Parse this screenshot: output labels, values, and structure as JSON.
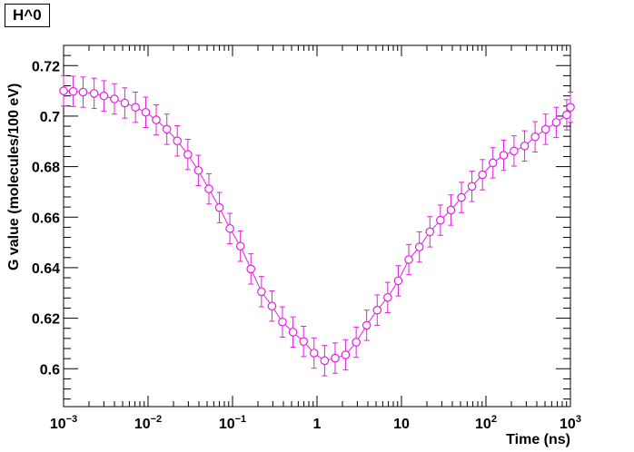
{
  "chart_data": {
    "type": "line",
    "title": "H^0",
    "xlabel": "Time (ns)",
    "ylabel": "G value (molecules/100 eV)",
    "xscale": "log",
    "xlim": [
      0.001,
      1000
    ],
    "ylim": [
      0.585,
      0.728
    ],
    "grid": false,
    "legend": "none",
    "x_tick_labels": [
      {
        "base": "10",
        "exp": "−3",
        "value": 0.001
      },
      {
        "base": "10",
        "exp": "−2",
        "value": 0.01
      },
      {
        "base": "10",
        "exp": "−1",
        "value": 0.1
      },
      {
        "base": "1",
        "exp": "",
        "value": 1
      },
      {
        "base": "10",
        "exp": "",
        "value": 10
      },
      {
        "base": "10",
        "exp": "2",
        "value": 100
      },
      {
        "base": "10",
        "exp": "3",
        "value": 1000
      }
    ],
    "y_ticks": [
      0.6,
      0.62,
      0.64,
      0.66,
      0.68,
      0.7,
      0.72
    ],
    "y_tick_labels": [
      "0.6",
      "0.62",
      "0.64",
      "0.66",
      "0.68",
      "0.7",
      "0.72"
    ],
    "colors": {
      "series": "#e020e0",
      "axes": "#000000"
    },
    "series": [
      {
        "x": [
          0.001,
          0.0013,
          0.0017,
          0.0023,
          0.003,
          0.004,
          0.0053,
          0.0071,
          0.0094,
          0.0125,
          0.0167,
          0.0222,
          0.0296,
          0.0394,
          0.0525,
          0.07,
          0.093,
          0.124,
          0.165,
          0.22,
          0.293,
          0.39,
          0.52,
          0.693,
          0.923,
          1.23,
          1.64,
          2.18,
          2.91,
          3.87,
          5.16,
          6.87,
          9.16,
          12.2,
          16.3,
          21.7,
          28.9,
          38.5,
          51.3,
          68.3,
          91.0,
          121,
          162,
          215,
          287,
          382,
          509,
          679,
          904,
          1000
        ],
        "y": [
          0.71,
          0.7098,
          0.7095,
          0.709,
          0.708,
          0.7068,
          0.7052,
          0.7035,
          0.7015,
          0.6985,
          0.6948,
          0.6902,
          0.6848,
          0.6785,
          0.6712,
          0.6638,
          0.6555,
          0.6485,
          0.6395,
          0.6305,
          0.6248,
          0.6185,
          0.6145,
          0.6108,
          0.6062,
          0.6032,
          0.6042,
          0.6055,
          0.6105,
          0.6172,
          0.6232,
          0.6282,
          0.6348,
          0.6432,
          0.6482,
          0.6542,
          0.6588,
          0.6628,
          0.6678,
          0.6722,
          0.6768,
          0.6815,
          0.6845,
          0.6862,
          0.6882,
          0.6918,
          0.6948,
          0.6975,
          0.7005,
          0.7035
        ],
        "yerr": 0.006
      }
    ]
  }
}
